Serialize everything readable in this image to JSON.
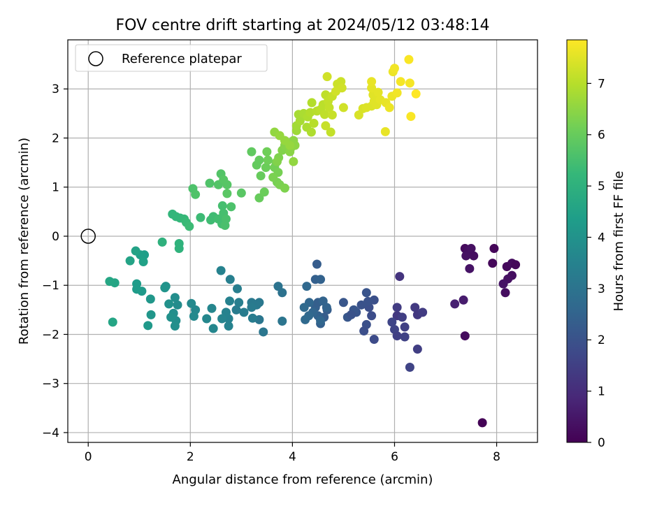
{
  "chart_data": {
    "type": "scatter",
    "title": "FOV centre drift starting at 2024/05/12 03:48:14",
    "xlabel": "Angular distance from reference (arcmin)",
    "ylabel": "Rotation from reference (arcmin)",
    "xlim": [
      -0.4,
      8.8
    ],
    "ylim": [
      -4.2,
      4.0
    ],
    "xticks": [
      0,
      2,
      4,
      6,
      8
    ],
    "yticks": [
      -4,
      -3,
      -2,
      -1,
      0,
      1,
      2,
      3
    ],
    "grid": true,
    "legend": {
      "position": "top-left",
      "entries": [
        "Reference platepar"
      ]
    },
    "reference_point": {
      "x": 0,
      "y": 0
    },
    "colorbar": {
      "label": "Hours from first FF file",
      "colormap": "viridis",
      "range": [
        0,
        7.85
      ],
      "ticks": [
        0,
        1,
        2,
        3,
        4,
        5,
        6,
        7
      ],
      "colors": [
        "#440154",
        "#482878",
        "#3e4989",
        "#31688e",
        "#26828e",
        "#1f9e89",
        "#35b779",
        "#6ece58",
        "#b5de2b",
        "#fde725"
      ]
    },
    "points": [
      [
        7.72,
        -3.8,
        0.05
      ],
      [
        7.38,
        -2.03,
        0.25
      ],
      [
        7.38,
        -0.25,
        0.2
      ],
      [
        7.45,
        -0.28,
        0.3
      ],
      [
        7.5,
        -0.25,
        0.35
      ],
      [
        7.55,
        -0.4,
        0.3
      ],
      [
        7.47,
        -0.66,
        0.4
      ],
      [
        7.4,
        -0.4,
        0.35
      ],
      [
        7.35,
        -1.3,
        0.6
      ],
      [
        7.18,
        -1.38,
        0.7
      ],
      [
        7.95,
        -0.25,
        0.1
      ],
      [
        7.92,
        -0.55,
        0.15
      ],
      [
        8.2,
        -0.62,
        0.2
      ],
      [
        8.3,
        -0.55,
        0.25
      ],
      [
        8.37,
        -0.58,
        0.15
      ],
      [
        8.3,
        -0.8,
        0.3
      ],
      [
        8.22,
        -0.87,
        0.35
      ],
      [
        8.13,
        -0.97,
        0.4
      ],
      [
        8.17,
        -1.15,
        0.3
      ],
      [
        6.1,
        -0.82,
        1.2
      ],
      [
        6.05,
        -1.45,
        1.4
      ],
      [
        6.05,
        -1.62,
        1.3
      ],
      [
        6.15,
        -1.65,
        1.45
      ],
      [
        6.2,
        -1.85,
        1.5
      ],
      [
        6.0,
        -1.9,
        1.6
      ],
      [
        5.95,
        -1.75,
        1.65
      ],
      [
        6.05,
        -2.03,
        1.5
      ],
      [
        6.2,
        -2.05,
        1.55
      ],
      [
        6.3,
        -2.67,
        1.6
      ],
      [
        6.45,
        -2.3,
        1.45
      ],
      [
        6.4,
        -1.45,
        1.35
      ],
      [
        6.45,
        -1.6,
        1.3
      ],
      [
        6.55,
        -1.55,
        1.4
      ],
      [
        5.6,
        -2.1,
        1.8
      ],
      [
        5.55,
        -1.62,
        1.85
      ],
      [
        5.5,
        -1.45,
        1.9
      ],
      [
        5.6,
        -1.3,
        1.95
      ],
      [
        5.48,
        -1.33,
        2.0
      ],
      [
        5.45,
        -1.15,
        2.05
      ],
      [
        5.35,
        -1.4,
        2.0
      ],
      [
        5.45,
        -1.8,
        1.95
      ],
      [
        5.4,
        -1.93,
        1.9
      ],
      [
        5.25,
        -1.55,
        2.05
      ],
      [
        5.2,
        -1.5,
        2.1
      ],
      [
        5.08,
        -1.65,
        2.15
      ],
      [
        5.0,
        -1.35,
        2.1
      ],
      [
        5.15,
        -1.6,
        2.0
      ],
      [
        4.68,
        -1.5,
        2.3
      ],
      [
        4.62,
        -1.65,
        2.3
      ],
      [
        4.55,
        -1.78,
        2.4
      ],
      [
        4.5,
        -1.62,
        2.45
      ],
      [
        4.45,
        -1.45,
        2.4
      ],
      [
        4.5,
        -1.35,
        2.35
      ],
      [
        4.48,
        -0.57,
        2.3
      ],
      [
        4.45,
        -0.88,
        2.4
      ],
      [
        4.55,
        -0.88,
        2.45
      ],
      [
        4.6,
        -1.32,
        2.5
      ],
      [
        4.67,
        -1.45,
        2.5
      ],
      [
        4.4,
        -1.55,
        2.55
      ],
      [
        4.33,
        -1.35,
        2.6
      ],
      [
        4.32,
        -1.62,
        2.65
      ],
      [
        4.25,
        -1.7,
        2.7
      ],
      [
        4.23,
        -1.45,
        2.7
      ],
      [
        4.28,
        -1.02,
        2.65
      ],
      [
        4.55,
        -1.72,
        2.6
      ],
      [
        3.8,
        -1.15,
        2.95
      ],
      [
        3.72,
        -1.02,
        3.0
      ],
      [
        3.8,
        -1.73,
        3.05
      ],
      [
        3.43,
        -1.95,
        3.1
      ],
      [
        3.35,
        -1.35,
        3.15
      ],
      [
        3.35,
        -1.7,
        3.1
      ],
      [
        3.3,
        -1.4,
        3.2
      ],
      [
        3.2,
        -1.35,
        3.2
      ],
      [
        3.2,
        -1.45,
        3.25
      ],
      [
        3.22,
        -1.67,
        3.3
      ],
      [
        3.05,
        -1.55,
        3.3
      ],
      [
        2.95,
        -1.35,
        3.35
      ],
      [
        2.9,
        -1.5,
        3.3
      ],
      [
        2.92,
        -1.07,
        3.35
      ],
      [
        2.78,
        -0.88,
        3.4
      ],
      [
        2.77,
        -1.32,
        3.45
      ],
      [
        2.75,
        -1.83,
        3.5
      ],
      [
        2.75,
        -1.68,
        3.45
      ],
      [
        2.7,
        -1.55,
        3.5
      ],
      [
        2.62,
        -1.68,
        3.55
      ],
      [
        2.6,
        -0.7,
        3.5
      ],
      [
        2.45,
        -1.88,
        3.6
      ],
      [
        2.42,
        -1.47,
        3.6
      ],
      [
        2.32,
        -1.68,
        3.65
      ],
      [
        2.1,
        -1.5,
        3.65
      ],
      [
        2.07,
        -1.63,
        3.7
      ],
      [
        2.02,
        -1.37,
        3.7
      ],
      [
        1.75,
        -1.4,
        3.8
      ],
      [
        1.7,
        -1.25,
        3.85
      ],
      [
        1.72,
        -1.72,
        3.85
      ],
      [
        1.7,
        -1.83,
        3.9
      ],
      [
        1.67,
        -1.57,
        3.9
      ],
      [
        1.62,
        -1.65,
        3.95
      ],
      [
        1.58,
        -1.38,
        3.95
      ],
      [
        1.52,
        -1.02,
        4.0
      ],
      [
        1.5,
        -1.05,
        4.05
      ],
      [
        1.23,
        -1.6,
        4.1
      ],
      [
        1.22,
        -1.28,
        4.15
      ],
      [
        1.17,
        -1.82,
        4.2
      ],
      [
        1.05,
        -1.12,
        4.25
      ],
      [
        0.95,
        -1.08,
        4.3
      ],
      [
        0.95,
        -0.97,
        4.3
      ],
      [
        1.1,
        -0.38,
        4.35
      ],
      [
        1.02,
        -0.38,
        4.4
      ],
      [
        1.08,
        -0.52,
        4.45
      ],
      [
        0.93,
        -0.3,
        4.5
      ],
      [
        0.82,
        -0.5,
        4.55
      ],
      [
        0.48,
        -1.75,
        4.6
      ],
      [
        0.52,
        -0.95,
        4.6
      ],
      [
        0.42,
        -0.92,
        4.65
      ],
      [
        1.45,
        -0.12,
        5.0
      ],
      [
        1.78,
        -0.15,
        5.05
      ],
      [
        1.78,
        -0.25,
        5.05
      ],
      [
        1.65,
        0.45,
        5.15
      ],
      [
        1.72,
        0.4,
        5.2
      ],
      [
        1.8,
        0.37,
        5.2
      ],
      [
        1.88,
        0.35,
        5.25
      ],
      [
        1.92,
        0.28,
        5.3
      ],
      [
        1.98,
        0.2,
        5.35
      ],
      [
        2.2,
        0.38,
        5.35
      ],
      [
        2.4,
        0.33,
        5.4
      ],
      [
        2.45,
        0.4,
        5.4
      ],
      [
        2.55,
        0.35,
        5.45
      ],
      [
        2.62,
        0.25,
        5.45
      ],
      [
        2.65,
        0.47,
        5.5
      ],
      [
        2.63,
        0.62,
        5.5
      ],
      [
        2.7,
        0.35,
        5.55
      ],
      [
        2.68,
        0.22,
        5.55
      ],
      [
        2.8,
        0.6,
        5.6
      ],
      [
        2.05,
        0.97,
        5.6
      ],
      [
        2.1,
        0.85,
        5.65
      ],
      [
        2.38,
        1.08,
        5.65
      ],
      [
        2.55,
        1.05,
        5.7
      ],
      [
        2.6,
        1.27,
        5.7
      ],
      [
        2.65,
        1.15,
        5.75
      ],
      [
        2.72,
        1.05,
        5.75
      ],
      [
        2.72,
        0.87,
        5.8
      ],
      [
        3.0,
        0.88,
        5.8
      ],
      [
        3.2,
        1.72,
        5.9
      ],
      [
        3.3,
        1.45,
        5.95
      ],
      [
        3.35,
        1.55,
        5.95
      ],
      [
        3.38,
        1.23,
        6.0
      ],
      [
        3.35,
        0.78,
        6.0
      ],
      [
        3.45,
        0.9,
        6.05
      ],
      [
        3.48,
        1.4,
        6.05
      ],
      [
        3.52,
        1.55,
        6.1
      ],
      [
        3.5,
        1.72,
        6.1
      ],
      [
        3.65,
        1.4,
        6.15
      ],
      [
        3.68,
        1.5,
        6.15
      ],
      [
        3.72,
        1.3,
        6.2
      ],
      [
        3.7,
        1.1,
        6.2
      ],
      [
        3.62,
        1.2,
        6.25
      ],
      [
        3.75,
        1.05,
        6.25
      ],
      [
        3.85,
        0.98,
        6.3
      ],
      [
        3.73,
        1.6,
        6.3
      ],
      [
        3.7,
        1.52,
        6.35
      ],
      [
        3.8,
        1.75,
        6.35
      ],
      [
        3.85,
        1.85,
        6.4
      ],
      [
        3.9,
        1.9,
        6.4
      ],
      [
        3.95,
        1.72,
        6.45
      ],
      [
        3.97,
        1.8,
        6.45
      ],
      [
        4.02,
        1.95,
        6.5
      ],
      [
        4.05,
        1.85,
        6.5
      ],
      [
        4.02,
        1.52,
        6.55
      ],
      [
        3.65,
        2.12,
        6.55
      ],
      [
        3.75,
        2.05,
        6.6
      ],
      [
        3.85,
        1.95,
        6.6
      ],
      [
        3.95,
        1.85,
        6.6
      ],
      [
        4.08,
        2.15,
        6.7
      ],
      [
        4.08,
        2.25,
        6.75
      ],
      [
        4.12,
        2.48,
        6.8
      ],
      [
        4.15,
        2.35,
        6.8
      ],
      [
        4.22,
        2.5,
        6.85
      ],
      [
        4.28,
        2.22,
        6.85
      ],
      [
        4.3,
        2.43,
        6.9
      ],
      [
        4.37,
        2.12,
        6.9
      ],
      [
        4.35,
        2.52,
        6.95
      ],
      [
        4.38,
        2.72,
        6.95
      ],
      [
        4.42,
        2.3,
        7.0
      ],
      [
        4.48,
        2.55,
        7.0
      ],
      [
        4.55,
        2.58,
        7.05
      ],
      [
        4.6,
        2.68,
        7.05
      ],
      [
        4.63,
        2.48,
        7.1
      ],
      [
        4.65,
        2.88,
        7.1
      ],
      [
        4.7,
        2.75,
        7.15
      ],
      [
        4.72,
        2.62,
        7.15
      ],
      [
        4.75,
        2.12,
        7.15
      ],
      [
        4.78,
        2.85,
        7.2
      ],
      [
        4.78,
        2.47,
        7.2
      ],
      [
        4.65,
        2.25,
        7.2
      ],
      [
        4.88,
        3.1,
        7.25
      ],
      [
        4.95,
        3.15,
        7.25
      ],
      [
        4.97,
        3.02,
        7.3
      ],
      [
        4.68,
        3.25,
        7.3
      ],
      [
        5.0,
        2.62,
        7.3
      ],
      [
        4.85,
        2.95,
        7.3
      ],
      [
        5.3,
        2.47,
        7.4
      ],
      [
        5.38,
        2.6,
        7.4
      ],
      [
        5.45,
        2.62,
        7.45
      ],
      [
        5.55,
        2.65,
        7.45
      ],
      [
        5.6,
        2.75,
        7.5
      ],
      [
        5.58,
        2.88,
        7.5
      ],
      [
        5.65,
        2.68,
        7.5
      ],
      [
        5.72,
        2.78,
        7.55
      ],
      [
        5.68,
        2.93,
        7.55
      ],
      [
        5.55,
        3.02,
        7.55
      ],
      [
        5.55,
        3.15,
        7.6
      ],
      [
        5.82,
        2.13,
        7.6
      ],
      [
        5.83,
        2.72,
        7.6
      ],
      [
        5.9,
        2.62,
        7.65
      ],
      [
        5.95,
        2.85,
        7.65
      ],
      [
        5.97,
        3.35,
        7.65
      ],
      [
        6.0,
        3.42,
        7.7
      ],
      [
        6.05,
        2.92,
        7.7
      ],
      [
        6.12,
        3.15,
        7.75
      ],
      [
        6.3,
        3.12,
        7.75
      ],
      [
        6.28,
        3.6,
        7.8
      ],
      [
        6.32,
        2.44,
        7.8
      ],
      [
        6.42,
        2.9,
        7.85
      ]
    ]
  }
}
